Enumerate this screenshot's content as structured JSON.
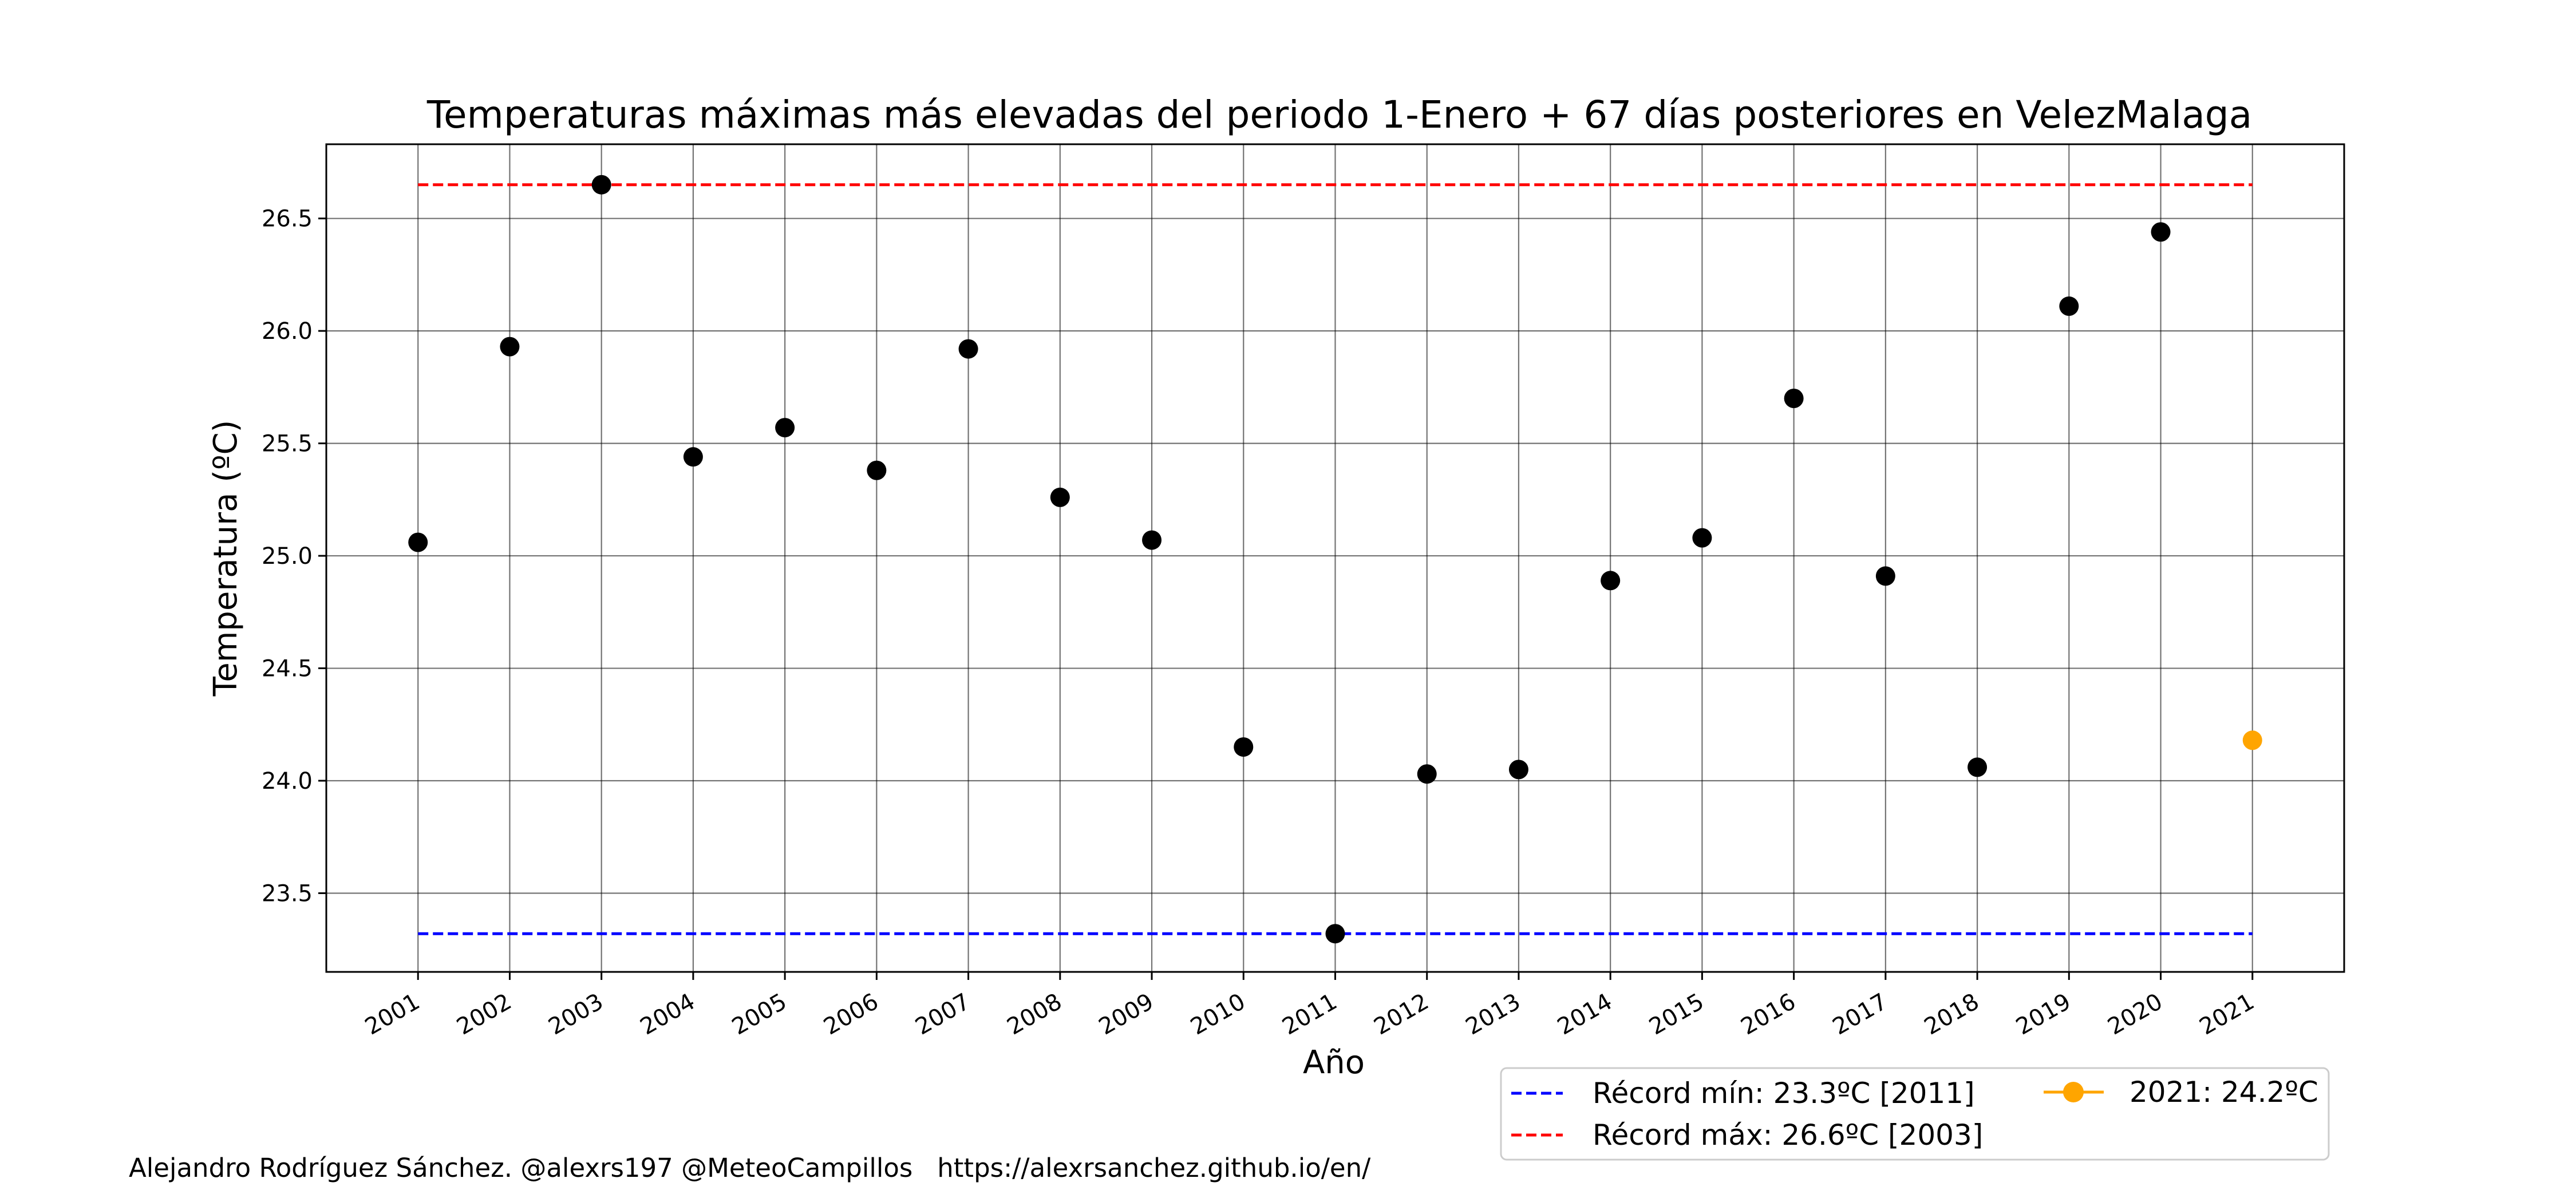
{
  "chart_data": {
    "type": "scatter",
    "title": "Temperaturas máximas más elevadas del periodo 1-Enero + 67 días posteriores en VelezMalaga",
    "xlabel": "Año",
    "ylabel": "Temperatura (ºC)",
    "x_ticks": [
      "2001",
      "2002",
      "2003",
      "2004",
      "2005",
      "2006",
      "2007",
      "2008",
      "2009",
      "2010",
      "2011",
      "2012",
      "2013",
      "2014",
      "2015",
      "2016",
      "2017",
      "2018",
      "2019",
      "2020",
      "2021"
    ],
    "y_ticks": [
      "23.5",
      "24.0",
      "24.5",
      "25.0",
      "25.5",
      "26.0",
      "26.5"
    ],
    "xlim": [
      2000,
      2022
    ],
    "ylim": [
      23.15,
      26.83
    ],
    "grid": true,
    "series": [
      {
        "color": "#000000",
        "x": [
          2001,
          2002,
          2003,
          2004,
          2005,
          2006,
          2007,
          2008,
          2009,
          2010,
          2011,
          2012,
          2013,
          2014,
          2015,
          2016,
          2017,
          2018,
          2019,
          2020
        ],
        "y": [
          25.06,
          25.93,
          26.65,
          25.44,
          25.57,
          25.38,
          25.92,
          25.26,
          25.07,
          24.15,
          23.32,
          24.03,
          24.05,
          24.89,
          25.08,
          25.7,
          24.91,
          24.06,
          26.11,
          26.44
        ]
      },
      {
        "name": "2021: 24.2ºC",
        "color": "#FFA500",
        "x": [
          2021
        ],
        "y": [
          24.18
        ]
      }
    ],
    "reference_lines": [
      {
        "name": "Récord mín: 23.3ºC [2011]",
        "value": 23.32,
        "from": 2001,
        "to": 2021,
        "color": "#0000FF",
        "style": "dashed"
      },
      {
        "name": "Récord máx: 26.6ºC [2003]",
        "value": 26.65,
        "from": 2001,
        "to": 2021,
        "color": "#FF0000",
        "style": "dashed"
      }
    ],
    "legend": {
      "placement": "bottom-right, below plot",
      "entries": [
        "Récord mín: 23.3ºC [2011]",
        "Récord máx: 26.6ºC [2003]",
        "2021: 24.2ºC"
      ]
    }
  },
  "footer": {
    "credit": "Alejandro Rodríguez Sánchez. @alexrs197 @MeteoCampillos   https://alexrsanchez.github.io/en/"
  }
}
